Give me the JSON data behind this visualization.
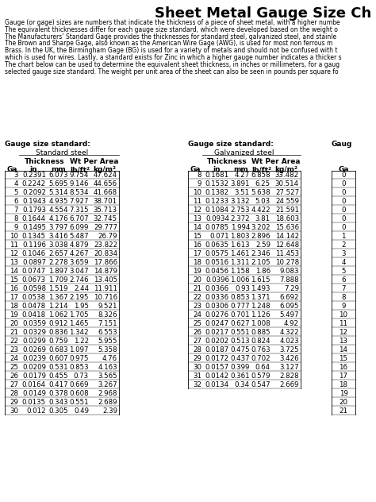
{
  "title": "Sheet Metal Gauge Size Ch",
  "description_lines": [
    "Gauge (or gage) sizes are numbers that indicate the thickness of a piece of sheet metal, with a higher numbe",
    "The equivalent thicknesses differ for each gauge size standard, which were developed based on the weight o",
    "The Manufacturers’ Standard Gage provides the thicknesses for standard steel, galvanized steel, and stainle",
    "The Brown and Sharpe Gage, also known as the American Wire Gage (AWG), is used for most non ferrous m",
    "Brass. In the UK, the Birmingham Gage (BG) is used for a variety of metals and should not be confused with t",
    "which is used for wires. Lastly, a standard exists for Zinc in which a higher gauge number indicates a thicker s",
    "The chart below can be used to determine the equivalent sheet thickness, in inches or millimeters, for a gaug",
    "selected gauge size standard. The weight per unit area of the sheet can also be seen in pounds per square fo"
  ],
  "standard_steel": {
    "label": "Standard steel",
    "gauge_label": "Gauge size standard:",
    "col_headers": [
      "Ga",
      "in",
      "mm",
      "lb/ft²",
      "kg/m²"
    ],
    "rows": [
      [
        3,
        0.2391,
        6.073,
        9.754,
        47.624
      ],
      [
        4,
        0.2242,
        5.695,
        9.146,
        44.656
      ],
      [
        5,
        0.2092,
        5.314,
        8.534,
        41.668
      ],
      [
        6,
        0.1943,
        4.935,
        7.927,
        38.701
      ],
      [
        7,
        0.1793,
        4.554,
        7.315,
        35.713
      ],
      [
        8,
        0.1644,
        4.176,
        6.707,
        32.745
      ],
      [
        9,
        0.1495,
        3.797,
        6.099,
        29.777
      ],
      [
        10,
        0.1345,
        3.416,
        5.487,
        26.79
      ],
      [
        11,
        0.1196,
        3.038,
        4.879,
        23.822
      ],
      [
        12,
        0.1046,
        2.657,
        4.267,
        20.834
      ],
      [
        13,
        0.0897,
        2.278,
        3.659,
        17.866
      ],
      [
        14,
        0.0747,
        1.897,
        3.047,
        14.879
      ],
      [
        15,
        0.0673,
        1.709,
        2.746,
        13.405
      ],
      [
        16,
        0.0598,
        1.519,
        2.44,
        11.911
      ],
      [
        17,
        0.0538,
        1.367,
        2.195,
        10.716
      ],
      [
        18,
        0.0478,
        1.214,
        1.95,
        9.521
      ],
      [
        19,
        0.0418,
        1.062,
        1.705,
        8.326
      ],
      [
        20,
        0.0359,
        0.912,
        1.465,
        7.151
      ],
      [
        21,
        0.0329,
        0.836,
        1.342,
        6.553
      ],
      [
        22,
        0.0299,
        0.759,
        1.22,
        5.955
      ],
      [
        23,
        0.0269,
        0.683,
        1.097,
        5.358
      ],
      [
        24,
        0.0239,
        0.607,
        0.975,
        4.76
      ],
      [
        25,
        0.0209,
        0.531,
        0.853,
        4.163
      ],
      [
        26,
        0.0179,
        0.455,
        0.73,
        3.565
      ],
      [
        27,
        0.0164,
        0.417,
        0.669,
        3.267
      ],
      [
        28,
        0.0149,
        0.378,
        0.608,
        2.968
      ],
      [
        29,
        0.0135,
        0.343,
        0.551,
        2.689
      ],
      [
        30,
        0.012,
        0.305,
        0.49,
        2.39
      ]
    ]
  },
  "galvanized_steel": {
    "label": "Galvanized steel",
    "gauge_label": "Gauge size standard:",
    "col_headers": [
      "Ga",
      "in",
      "mm",
      "lb/ft²",
      "kg/m²"
    ],
    "rows": [
      [
        8,
        0.1681,
        4.27,
        6.858,
        33.482
      ],
      [
        9,
        0.1532,
        3.891,
        6.25,
        30.514
      ],
      [
        10,
        0.1382,
        3.51,
        5.638,
        27.527
      ],
      [
        11,
        0.1233,
        3.132,
        5.03,
        24.559
      ],
      [
        12,
        0.1084,
        2.753,
        4.422,
        21.591
      ],
      [
        13,
        0.0934,
        2.372,
        3.81,
        18.603
      ],
      [
        14,
        0.0785,
        1.994,
        3.202,
        15.636
      ],
      [
        15,
        0.071,
        1.803,
        2.896,
        14.142
      ],
      [
        16,
        0.0635,
        1.613,
        2.59,
        12.648
      ],
      [
        17,
        0.0575,
        1.461,
        2.346,
        11.453
      ],
      [
        18,
        0.0516,
        1.311,
        2.105,
        10.278
      ],
      [
        19,
        0.0456,
        1.158,
        1.86,
        9.083
      ],
      [
        20,
        0.0396,
        1.006,
        1.615,
        7.888
      ],
      [
        21,
        0.0366,
        0.93,
        1.493,
        7.29
      ],
      [
        22,
        0.0336,
        0.853,
        1.371,
        6.692
      ],
      [
        23,
        0.0306,
        0.777,
        1.248,
        6.095
      ],
      [
        24,
        0.0276,
        0.701,
        1.126,
        5.497
      ],
      [
        25,
        0.0247,
        0.627,
        1.008,
        4.92
      ],
      [
        26,
        0.0217,
        0.551,
        0.885,
        4.322
      ],
      [
        27,
        0.0202,
        0.513,
        0.824,
        4.023
      ],
      [
        28,
        0.0187,
        0.475,
        0.763,
        3.725
      ],
      [
        29,
        0.0172,
        0.437,
        0.702,
        3.426
      ],
      [
        30,
        0.0157,
        0.399,
        0.64,
        3.127
      ],
      [
        31,
        0.0142,
        0.361,
        0.579,
        2.828
      ],
      [
        32,
        0.0134,
        0.34,
        0.547,
        2.669
      ]
    ]
  },
  "third_col": {
    "label": "Gaug",
    "col_header": "Ga",
    "values": [
      0,
      0,
      0,
      0,
      0,
      0,
      0,
      1,
      2,
      3,
      4,
      5,
      6,
      7,
      8,
      9,
      10,
      11,
      12,
      13,
      14,
      15,
      16,
      17,
      18,
      19,
      20,
      21
    ]
  },
  "bg_color": "#ffffff",
  "text_color": "#000000",
  "title_fontsize": 13,
  "desc_fontsize": 5.5,
  "table_fontsize": 6.2,
  "header_fontsize": 6.5
}
